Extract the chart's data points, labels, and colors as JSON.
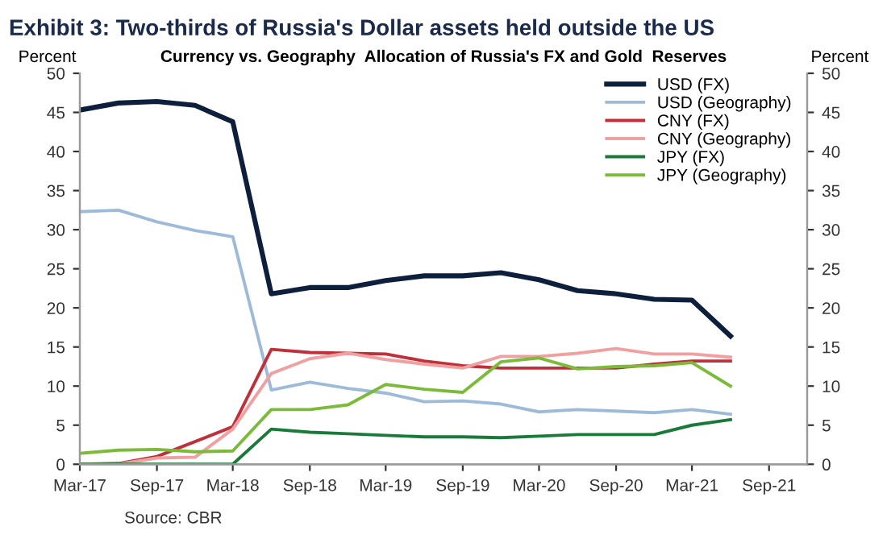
{
  "chart_data": {
    "type": "line",
    "title": "Exhibit 3: Two-thirds of Russia's Dollar assets held outside the US",
    "subtitle": "Currency vs. Geography  Allocation of Russia's FX and Gold  Reserves",
    "ylabel": "Percent",
    "y2label": "Percent",
    "annotations": [
      "Source: CBR"
    ],
    "x": [
      "2017-03",
      "2017-06",
      "2017-09",
      "2017-12",
      "2018-03",
      "2018-06",
      "2018-09",
      "2018-12",
      "2019-03",
      "2019-06",
      "2019-09",
      "2019-12",
      "2020-03",
      "2020-06",
      "2020-09",
      "2020-12",
      "2021-03",
      "2021-06"
    ],
    "series": [
      {
        "name": "USD (FX)",
        "color": "#0d1f3c",
        "values": [
          45.3,
          46.2,
          46.4,
          45.9,
          43.8,
          21.8,
          22.6,
          22.6,
          23.5,
          24.1,
          24.1,
          24.5,
          23.6,
          22.2,
          21.8,
          21.1,
          21.0,
          16.4
        ]
      },
      {
        "name": "USD (Geography)",
        "color": "#9dbbd8",
        "values": [
          32.3,
          32.5,
          31.0,
          29.9,
          29.1,
          9.5,
          10.5,
          9.7,
          9.1,
          8.0,
          8.1,
          7.7,
          6.7,
          7.0,
          6.8,
          6.6,
          7.0,
          6.4
        ]
      },
      {
        "name": "CNY (FX)",
        "color": "#c0303a",
        "values": [
          0,
          0.1,
          1.0,
          2.9,
          4.8,
          14.7,
          14.3,
          14.2,
          14.1,
          13.2,
          12.6,
          12.3,
          12.3,
          12.3,
          12.3,
          12.8,
          13.2,
          13.2
        ]
      },
      {
        "name": "CNY (Geography)",
        "color": "#f0a0a0",
        "values": [
          0,
          0,
          0.8,
          0.9,
          4.5,
          11.6,
          13.5,
          14.2,
          13.4,
          12.8,
          12.3,
          13.8,
          13.8,
          14.2,
          14.8,
          14.1,
          14.1,
          13.7
        ]
      },
      {
        "name": "JPY (FX)",
        "color": "#1a7a3a",
        "values": [
          0,
          0,
          0,
          0,
          0,
          4.5,
          4.1,
          3.9,
          3.7,
          3.5,
          3.5,
          3.4,
          3.6,
          3.8,
          3.8,
          3.8,
          5.0,
          5.7
        ]
      },
      {
        "name": "JPY (Geography)",
        "color": "#7cbb3a",
        "values": [
          1.4,
          1.8,
          1.9,
          1.6,
          1.7,
          7.0,
          7.0,
          7.6,
          10.2,
          9.6,
          9.2,
          13.1,
          13.6,
          12.2,
          12.5,
          12.6,
          13.0,
          10.0
        ]
      }
    ],
    "xlim": [
      "2017-03",
      "2021-12"
    ],
    "xticks": [
      {
        "value": "2017-03",
        "label": "Mar-17"
      },
      {
        "value": "2017-09",
        "label": "Sep-17"
      },
      {
        "value": "2018-03",
        "label": "Mar-18"
      },
      {
        "value": "2018-09",
        "label": "Sep-18"
      },
      {
        "value": "2019-03",
        "label": "Mar-19"
      },
      {
        "value": "2019-09",
        "label": "Sep-19"
      },
      {
        "value": "2020-03",
        "label": "Mar-20"
      },
      {
        "value": "2020-09",
        "label": "Sep-20"
      },
      {
        "value": "2021-03",
        "label": "Mar-21"
      },
      {
        "value": "2021-09",
        "label": "Sep-21"
      }
    ],
    "ylim": [
      0,
      50
    ],
    "yticks": [
      0,
      5,
      10,
      15,
      20,
      25,
      30,
      35,
      40,
      45,
      50
    ],
    "y2lim": [
      0,
      50
    ],
    "y2ticks": [
      0,
      5,
      10,
      15,
      20,
      25,
      30,
      35,
      40,
      45,
      50
    ],
    "legend": "top right",
    "grid": false,
    "marker": "none",
    "line_style": "solid"
  }
}
